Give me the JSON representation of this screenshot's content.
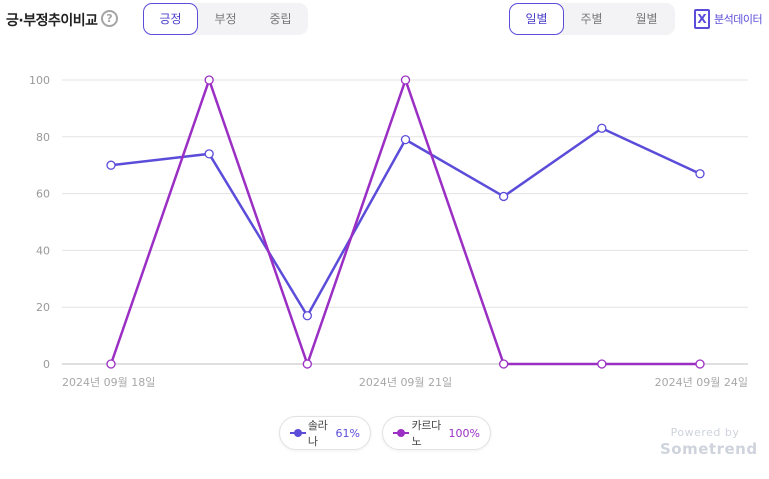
{
  "header": {
    "title": "긍·부정추이비교",
    "help": "?",
    "sentiment_tabs": [
      {
        "label": "긍정",
        "active": true
      },
      {
        "label": "부정",
        "active": false
      },
      {
        "label": "중립",
        "active": false
      }
    ],
    "period_tabs": [
      {
        "label": "일별",
        "active": true
      },
      {
        "label": "주별",
        "active": false
      },
      {
        "label": "월별",
        "active": false
      }
    ],
    "export_label": "분석데이터",
    "export_icon": "excel-icon"
  },
  "legend": [
    {
      "name": "솔라나",
      "value": "61%",
      "color": "#5b4dd9"
    },
    {
      "name": "카르다노",
      "value": "100%",
      "color": "#9b2fc4"
    }
  ],
  "powered": {
    "line1": "Powered by",
    "line2": "Sometrend"
  },
  "chart_data": {
    "type": "line",
    "x": [
      "2024-09-18",
      "2024-09-19",
      "2024-09-20",
      "2024-09-21",
      "2024-09-22",
      "2024-09-23",
      "2024-09-24"
    ],
    "x_tick_labels": [
      "2024년 09월 18일",
      "2024년 09월 21일",
      "2024년 09월 24일"
    ],
    "ylim": [
      0,
      100
    ],
    "y_ticks": [
      0,
      20,
      40,
      60,
      80,
      100
    ],
    "grid": true,
    "legend_position": "bottom-center",
    "series": [
      {
        "name": "솔라나",
        "color": "#5b4dd9",
        "values": [
          70,
          74,
          17,
          79,
          59,
          83,
          67
        ]
      },
      {
        "name": "카르다노",
        "color": "#9b2fc4",
        "values": [
          0,
          100,
          0,
          100,
          0,
          0,
          0
        ]
      }
    ]
  }
}
